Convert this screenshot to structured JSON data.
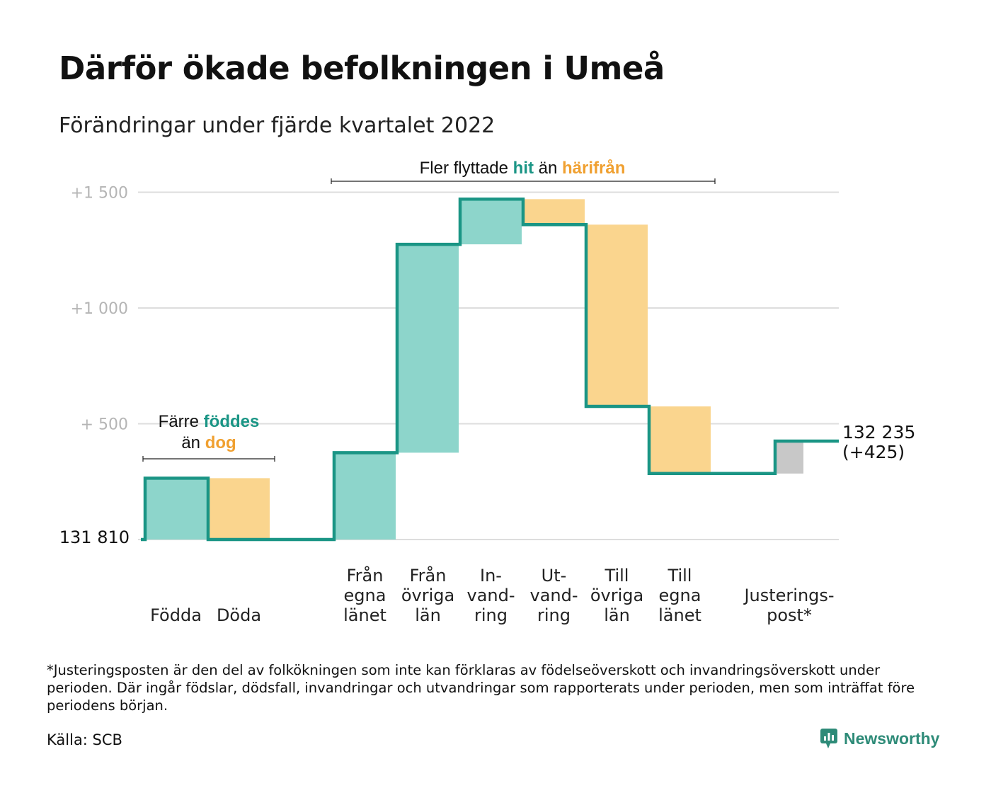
{
  "title": "Därför ökade befolkningen i Umeå",
  "subtitle": "Förändringar under fjärde kvartalet 2022",
  "colors": {
    "increase": "#8dd5cb",
    "decrease": "#fad58e",
    "adjustment": "#c8c8c8",
    "line": "#1a9585",
    "teal_text": "#1a9585",
    "orange_text": "#f0a030",
    "grid": "#dddddd"
  },
  "annotations": {
    "births": {
      "line1_a": "Färre ",
      "line1_b": "föddes",
      "line2_a": "än ",
      "line2_b": "dog"
    },
    "migration": {
      "a": "Fler flyttade ",
      "b": "hit",
      "c": " än ",
      "d": "härifrån"
    }
  },
  "chart_data": {
    "type": "waterfall",
    "title": "Därför ökade befolkningen i Umeå",
    "subtitle": "Förändringar under fjärde kvartalet 2022",
    "start_value": 131810,
    "start_label": "131 810",
    "end_value": 132235,
    "end_label": "132 235",
    "end_change_label": "(+425)",
    "y_ticks": [
      {
        "value": 500,
        "label": "+ 500"
      },
      {
        "value": 1000,
        "label": "+1 000"
      },
      {
        "value": 1500,
        "label": "+1 500"
      }
    ],
    "ylim": [
      0,
      1550
    ],
    "categories": [
      {
        "label": [
          "Födda"
        ],
        "value": 265,
        "kind": "increase"
      },
      {
        "label": [
          "Döda"
        ],
        "value": -265,
        "kind": "decrease"
      },
      {
        "label": [
          ""
        ],
        "value": 0,
        "kind": "gap"
      },
      {
        "label": [
          "Från",
          "egna",
          "länet"
        ],
        "value": 375,
        "kind": "increase"
      },
      {
        "label": [
          "Från",
          "övriga",
          "län"
        ],
        "value": 900,
        "kind": "increase"
      },
      {
        "label": [
          "In-",
          "vand-",
          "ring"
        ],
        "value": 195,
        "kind": "increase"
      },
      {
        "label": [
          "Ut-",
          "vand-",
          "ring"
        ],
        "value": -110,
        "kind": "decrease"
      },
      {
        "label": [
          "Till",
          "övriga",
          "län"
        ],
        "value": -785,
        "kind": "decrease"
      },
      {
        "label": [
          "Till",
          "egna",
          "länet"
        ],
        "value": -290,
        "kind": "decrease"
      },
      {
        "label": [
          ""
        ],
        "value": 0,
        "kind": "gap"
      },
      {
        "label": [
          "Justerings-",
          "post*"
        ],
        "value": 140,
        "kind": "adjustment"
      }
    ]
  },
  "footnote": "*Justeringsposten är den del av folkökningen som inte kan förklaras av födelseöverskott och invandringsöverskott under perioden. Där ingår födslar, dödsfall, invandringar och utvandringar som rapporterats under perioden, men som inträffat före periodens början.",
  "source": "Källa: SCB",
  "brand": {
    "name": "Newsworthy",
    "icon": "newsworthy-logo-icon"
  }
}
